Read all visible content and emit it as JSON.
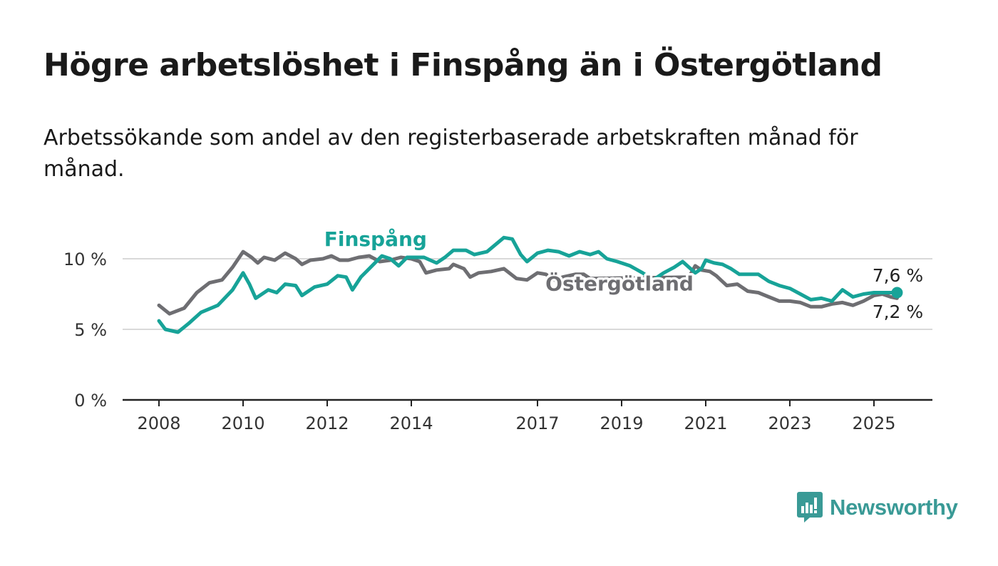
{
  "title": "Högre arbetslöshet i Finspång än i Östergötland",
  "subtitle": "Arbetssökande som andel av den registerbaserade arbetskraften månad för månad.",
  "brand": {
    "name": "Newsworthy",
    "icon": "bar-chart-logo-icon",
    "color": "#3a9a96"
  },
  "chart_data": {
    "type": "line",
    "y_ticks": [
      {
        "value": 0,
        "label": "0 %"
      },
      {
        "value": 5,
        "label": "5 %"
      },
      {
        "value": 10,
        "label": "10 %"
      }
    ],
    "x_ticks": [
      {
        "value": 2008,
        "label": "2008"
      },
      {
        "value": 2010,
        "label": "2010"
      },
      {
        "value": 2012,
        "label": "2012"
      },
      {
        "value": 2014,
        "label": "2014"
      },
      {
        "value": 2017,
        "label": "2017"
      },
      {
        "value": 2019,
        "label": "2019"
      },
      {
        "value": 2021,
        "label": "2021"
      },
      {
        "value": 2023,
        "label": "2023"
      },
      {
        "value": 2025,
        "label": "2025"
      }
    ],
    "xlim": [
      2008,
      2025.6
    ],
    "ylim": [
      0,
      12
    ],
    "grid": true,
    "series": [
      {
        "name": "Östergötland",
        "color": "#6e6e72",
        "end_label": "7,2 %",
        "points": [
          [
            2008,
            6.7
          ],
          [
            2008.25,
            6.1
          ],
          [
            2008.6,
            6.5
          ],
          [
            2008.9,
            7.6
          ],
          [
            2009.2,
            8.3
          ],
          [
            2009.5,
            8.5
          ],
          [
            2009.75,
            9.4
          ],
          [
            2010.0,
            10.5
          ],
          [
            2010.2,
            10.1
          ],
          [
            2010.35,
            9.7
          ],
          [
            2010.5,
            10.1
          ],
          [
            2010.75,
            9.9
          ],
          [
            2011.0,
            10.4
          ],
          [
            2011.25,
            10.0
          ],
          [
            2011.4,
            9.6
          ],
          [
            2011.6,
            9.9
          ],
          [
            2011.9,
            10.0
          ],
          [
            2012.1,
            10.2
          ],
          [
            2012.3,
            9.9
          ],
          [
            2012.5,
            9.9
          ],
          [
            2012.75,
            10.1
          ],
          [
            2013.0,
            10.2
          ],
          [
            2013.25,
            9.8
          ],
          [
            2013.5,
            9.9
          ],
          [
            2013.75,
            10.1
          ],
          [
            2014.0,
            10.0
          ],
          [
            2014.2,
            9.8
          ],
          [
            2014.35,
            9.0
          ],
          [
            2014.6,
            9.2
          ],
          [
            2014.9,
            9.3
          ],
          [
            2015.0,
            9.6
          ],
          [
            2015.25,
            9.3
          ],
          [
            2015.4,
            8.7
          ],
          [
            2015.6,
            9.0
          ],
          [
            2015.9,
            9.1
          ],
          [
            2016.2,
            9.3
          ],
          [
            2016.5,
            8.6
          ],
          [
            2016.75,
            8.5
          ],
          [
            2017.0,
            9.0
          ],
          [
            2017.2,
            8.9
          ],
          [
            2017.4,
            8.5
          ],
          [
            2017.6,
            8.7
          ],
          [
            2017.9,
            8.9
          ],
          [
            2018.1,
            8.9
          ],
          [
            2018.25,
            8.6
          ],
          [
            2020.6,
            8.7
          ],
          [
            2020.75,
            9.5
          ],
          [
            2020.9,
            9.2
          ],
          [
            2021.1,
            9.1
          ],
          [
            2021.25,
            8.8
          ],
          [
            2021.5,
            8.1
          ],
          [
            2021.75,
            8.2
          ],
          [
            2022.0,
            7.7
          ],
          [
            2022.25,
            7.6
          ],
          [
            2022.5,
            7.3
          ],
          [
            2022.75,
            7.0
          ],
          [
            2023.0,
            7.0
          ],
          [
            2023.25,
            6.9
          ],
          [
            2023.5,
            6.6
          ],
          [
            2023.75,
            6.6
          ],
          [
            2024.0,
            6.8
          ],
          [
            2024.25,
            6.9
          ],
          [
            2024.5,
            6.7
          ],
          [
            2024.75,
            7.0
          ],
          [
            2025.0,
            7.4
          ],
          [
            2025.2,
            7.5
          ],
          [
            2025.4,
            7.3
          ],
          [
            2025.55,
            7.2
          ]
        ]
      },
      {
        "name": "Finspång",
        "color": "#17a398",
        "end_label": "7,6 %",
        "points": [
          [
            2008,
            5.6
          ],
          [
            2008.15,
            5.0
          ],
          [
            2008.45,
            4.8
          ],
          [
            2008.7,
            5.4
          ],
          [
            2009.0,
            6.2
          ],
          [
            2009.4,
            6.7
          ],
          [
            2009.75,
            7.8
          ],
          [
            2010.0,
            9.0
          ],
          [
            2010.15,
            8.2
          ],
          [
            2010.3,
            7.2
          ],
          [
            2010.6,
            7.8
          ],
          [
            2010.8,
            7.6
          ],
          [
            2011.0,
            8.2
          ],
          [
            2011.25,
            8.1
          ],
          [
            2011.4,
            7.4
          ],
          [
            2011.7,
            8.0
          ],
          [
            2012.0,
            8.2
          ],
          [
            2012.25,
            8.8
          ],
          [
            2012.45,
            8.7
          ],
          [
            2012.6,
            7.8
          ],
          [
            2012.8,
            8.7
          ],
          [
            2013.0,
            9.3
          ],
          [
            2013.3,
            10.2
          ],
          [
            2013.5,
            10.0
          ],
          [
            2013.7,
            9.5
          ],
          [
            2013.9,
            10.1
          ],
          [
            2014.3,
            10.1
          ],
          [
            2014.45,
            9.9
          ],
          [
            2014.6,
            9.7
          ],
          [
            2014.8,
            10.1
          ],
          [
            2015.0,
            10.6
          ],
          [
            2015.3,
            10.6
          ],
          [
            2015.5,
            10.3
          ],
          [
            2015.8,
            10.5
          ],
          [
            2016.0,
            11.0
          ],
          [
            2016.2,
            11.5
          ],
          [
            2016.4,
            11.4
          ],
          [
            2016.6,
            10.3
          ],
          [
            2016.75,
            9.8
          ],
          [
            2017.0,
            10.4
          ],
          [
            2017.25,
            10.6
          ],
          [
            2017.5,
            10.5
          ],
          [
            2017.75,
            10.2
          ],
          [
            2018.0,
            10.5
          ],
          [
            2018.25,
            10.3
          ],
          [
            2018.45,
            10.5
          ],
          [
            2018.65,
            10.0
          ],
          [
            2018.9,
            9.8
          ],
          [
            2019.2,
            9.5
          ],
          [
            2019.5,
            9.0
          ],
          [
            2019.75,
            8.5
          ],
          [
            2020.0,
            9.0
          ],
          [
            2020.25,
            9.4
          ],
          [
            2020.45,
            9.8
          ],
          [
            2020.6,
            9.4
          ],
          [
            2020.75,
            9.0
          ],
          [
            2020.9,
            9.3
          ],
          [
            2021.0,
            9.9
          ],
          [
            2021.2,
            9.7
          ],
          [
            2021.4,
            9.6
          ],
          [
            2021.6,
            9.3
          ],
          [
            2021.8,
            8.9
          ],
          [
            2022.0,
            8.9
          ],
          [
            2022.25,
            8.9
          ],
          [
            2022.5,
            8.4
          ],
          [
            2022.75,
            8.1
          ],
          [
            2023.0,
            7.9
          ],
          [
            2023.25,
            7.5
          ],
          [
            2023.5,
            7.1
          ],
          [
            2023.75,
            7.2
          ],
          [
            2024.0,
            7.0
          ],
          [
            2024.25,
            7.8
          ],
          [
            2024.5,
            7.3
          ],
          [
            2024.75,
            7.5
          ],
          [
            2025.0,
            7.6
          ],
          [
            2025.25,
            7.6
          ],
          [
            2025.55,
            7.6
          ]
        ]
      }
    ],
    "legend": [
      {
        "text": "Finspång",
        "series": "Finspång",
        "anchor_x": 2013.15,
        "anchor_y": 10.9
      },
      {
        "text": "Östergötland",
        "series": "Östergötland",
        "anchor_x": 2018.95,
        "anchor_y": 7.75
      }
    ]
  }
}
